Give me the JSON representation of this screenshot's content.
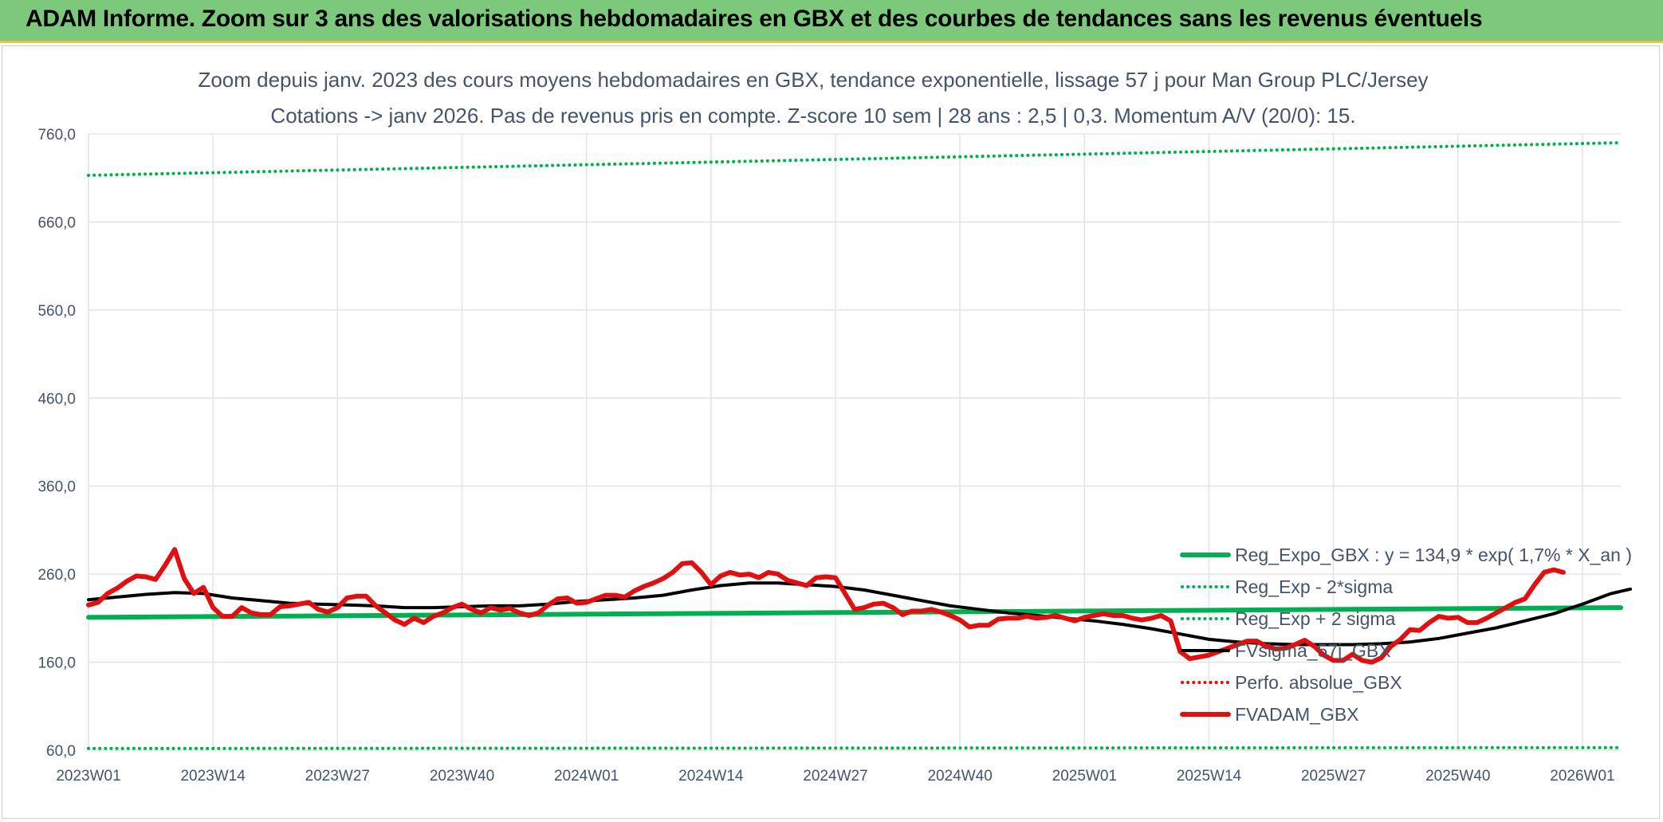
{
  "header": {
    "title": "ADAM Informe. Zoom sur 3 ans des valorisations hebdomadaires en GBX et des courbes de tendances sans les revenus éventuels"
  },
  "chart_data": {
    "type": "line",
    "title": "",
    "subtitle_lines": [
      "Zoom depuis janv. 2023 des cours moyens hebdomadaires en GBX, tendance exponentielle, lissage 57 j pour Man Group PLC/Jersey",
      "Cotations -> janv 2026. Pas de revenus pris en compte. Z-score 10 sem | 28 ans : 2,5 | 0,3. Momentum A/V (20/0): 15."
    ],
    "xlabel": "",
    "ylabel": "",
    "ylim": [
      60,
      760
    ],
    "yticks": [
      "760,0",
      "660,0",
      "560,0",
      "460,0",
      "360,0",
      "260,0",
      "160,0",
      "60,0"
    ],
    "yticks_values": [
      760,
      660,
      560,
      460,
      360,
      260,
      160,
      60
    ],
    "xticks": [
      "2023W01",
      "2023W14",
      "2023W27",
      "2023W40",
      "2024W01",
      "2024W14",
      "2024W27",
      "2024W40",
      "2025W01",
      "2025W14",
      "2025W27",
      "2025W40",
      "2026W01"
    ],
    "xticks_index": [
      0,
      13,
      26,
      39,
      52,
      65,
      78,
      91,
      104,
      117,
      130,
      143,
      156
    ],
    "x_index_range": [
      0,
      160
    ],
    "grid": true,
    "legend_position": "bottom-right",
    "colors": {
      "green": "#00b050",
      "black": "#000000",
      "red": "#e01010",
      "text": "#44546a",
      "grid": "#e3e3e3"
    },
    "series": [
      {
        "name": "Reg_Expo_GBX : y = 134,9 * exp( 1,7% *  X_an )",
        "style": "solid-thick",
        "color": "#00b050",
        "start": [
          0,
          211
        ],
        "end": [
          160,
          222
        ]
      },
      {
        "name": "Reg_Exp - 2*sigma",
        "style": "dotted",
        "color": "#00b050",
        "start": [
          0,
          62
        ],
        "end": [
          160,
          63
        ]
      },
      {
        "name": "Reg_Exp + 2 sigma",
        "style": "dotted",
        "color": "#00b050",
        "start": [
          0,
          713
        ],
        "end": [
          160,
          750
        ]
      },
      {
        "name": "FVsigma_57j_GBX",
        "style": "solid-medium",
        "color": "#000000",
        "points": [
          [
            0,
            231
          ],
          [
            3,
            234
          ],
          [
            6,
            237
          ],
          [
            9,
            239
          ],
          [
            12,
            238
          ],
          [
            15,
            233
          ],
          [
            18,
            230
          ],
          [
            21,
            227
          ],
          [
            24,
            226
          ],
          [
            27,
            225
          ],
          [
            30,
            224
          ],
          [
            33,
            222
          ],
          [
            36,
            222
          ],
          [
            39,
            223
          ],
          [
            42,
            224
          ],
          [
            45,
            224
          ],
          [
            48,
            226
          ],
          [
            51,
            229
          ],
          [
            54,
            231
          ],
          [
            57,
            233
          ],
          [
            60,
            236
          ],
          [
            63,
            242
          ],
          [
            66,
            247
          ],
          [
            69,
            250
          ],
          [
            72,
            250
          ],
          [
            75,
            248
          ],
          [
            78,
            246
          ],
          [
            81,
            242
          ],
          [
            84,
            236
          ],
          [
            87,
            230
          ],
          [
            90,
            224
          ],
          [
            93,
            220
          ],
          [
            96,
            216
          ],
          [
            99,
            213
          ],
          [
            102,
            210
          ],
          [
            105,
            207
          ],
          [
            108,
            203
          ],
          [
            111,
            198
          ],
          [
            114,
            192
          ],
          [
            117,
            186
          ],
          [
            120,
            183
          ],
          [
            123,
            181
          ],
          [
            126,
            180
          ],
          [
            129,
            180
          ],
          [
            132,
            180
          ],
          [
            135,
            181
          ],
          [
            138,
            183
          ],
          [
            141,
            187
          ],
          [
            144,
            193
          ],
          [
            147,
            199
          ],
          [
            150,
            207
          ],
          [
            153,
            215
          ],
          [
            156,
            226
          ],
          [
            159,
            238
          ],
          [
            161,
            243
          ]
        ]
      },
      {
        "name": "Perfo. absolue_GBX",
        "style": "dotted",
        "color": "#e01010",
        "points": []
      },
      {
        "name": "FVADAM_GBX",
        "style": "solid-thick",
        "color": "#e01010",
        "points": [
          [
            0,
            225
          ],
          [
            1,
            228
          ],
          [
            2,
            238
          ],
          [
            3,
            244
          ],
          [
            4,
            252
          ],
          [
            5,
            258
          ],
          [
            6,
            257
          ],
          [
            7,
            254
          ],
          [
            8,
            270
          ],
          [
            9,
            288
          ],
          [
            10,
            255
          ],
          [
            11,
            238
          ],
          [
            12,
            245
          ],
          [
            13,
            222
          ],
          [
            14,
            212
          ],
          [
            15,
            212
          ],
          [
            16,
            222
          ],
          [
            17,
            216
          ],
          [
            18,
            214
          ],
          [
            19,
            214
          ],
          [
            20,
            223
          ],
          [
            21,
            224
          ],
          [
            22,
            226
          ],
          [
            23,
            228
          ],
          [
            24,
            220
          ],
          [
            25,
            217
          ],
          [
            26,
            222
          ],
          [
            27,
            233
          ],
          [
            28,
            235
          ],
          [
            29,
            235
          ],
          [
            30,
            224
          ],
          [
            31,
            216
          ],
          [
            32,
            208
          ],
          [
            33,
            203
          ],
          [
            34,
            210
          ],
          [
            35,
            205
          ],
          [
            36,
            212
          ],
          [
            37,
            216
          ],
          [
            38,
            222
          ],
          [
            39,
            226
          ],
          [
            40,
            220
          ],
          [
            41,
            216
          ],
          [
            42,
            222
          ],
          [
            43,
            219
          ],
          [
            44,
            221
          ],
          [
            45,
            216
          ],
          [
            46,
            213
          ],
          [
            47,
            216
          ],
          [
            48,
            225
          ],
          [
            49,
            232
          ],
          [
            50,
            233
          ],
          [
            51,
            227
          ],
          [
            52,
            228
          ],
          [
            53,
            232
          ],
          [
            54,
            236
          ],
          [
            55,
            236
          ],
          [
            56,
            234
          ],
          [
            57,
            241
          ],
          [
            58,
            246
          ],
          [
            59,
            250
          ],
          [
            60,
            255
          ],
          [
            61,
            262
          ],
          [
            62,
            272
          ],
          [
            63,
            273
          ],
          [
            64,
            262
          ],
          [
            65,
            248
          ],
          [
            66,
            258
          ],
          [
            67,
            262
          ],
          [
            68,
            259
          ],
          [
            69,
            260
          ],
          [
            70,
            256
          ],
          [
            71,
            262
          ],
          [
            72,
            260
          ],
          [
            73,
            253
          ],
          [
            74,
            250
          ],
          [
            75,
            247
          ],
          [
            76,
            256
          ],
          [
            77,
            257
          ],
          [
            78,
            256
          ],
          [
            79,
            238
          ],
          [
            80,
            220
          ],
          [
            81,
            222
          ],
          [
            82,
            226
          ],
          [
            83,
            227
          ],
          [
            84,
            222
          ],
          [
            85,
            214
          ],
          [
            86,
            218
          ],
          [
            87,
            218
          ],
          [
            88,
            220
          ],
          [
            89,
            217
          ],
          [
            90,
            213
          ],
          [
            91,
            208
          ],
          [
            92,
            200
          ],
          [
            93,
            202
          ],
          [
            94,
            202
          ],
          [
            95,
            209
          ],
          [
            96,
            210
          ],
          [
            97,
            210
          ],
          [
            98,
            212
          ],
          [
            99,
            210
          ],
          [
            100,
            211
          ],
          [
            101,
            213
          ],
          [
            102,
            210
          ],
          [
            103,
            207
          ],
          [
            104,
            211
          ],
          [
            105,
            213
          ],
          [
            106,
            215
          ],
          [
            107,
            213
          ],
          [
            108,
            213
          ],
          [
            109,
            210
          ],
          [
            110,
            208
          ],
          [
            111,
            210
          ],
          [
            112,
            213
          ],
          [
            113,
            207
          ],
          [
            114,
            172
          ],
          [
            115,
            164
          ],
          [
            116,
            166
          ],
          [
            117,
            168
          ],
          [
            118,
            172
          ],
          [
            119,
            176
          ],
          [
            120,
            180
          ],
          [
            121,
            184
          ],
          [
            122,
            184
          ],
          [
            123,
            178
          ],
          [
            124,
            175
          ],
          [
            125,
            176
          ],
          [
            126,
            180
          ],
          [
            127,
            185
          ],
          [
            128,
            178
          ],
          [
            129,
            168
          ],
          [
            130,
            162
          ],
          [
            131,
            162
          ],
          [
            132,
            169
          ],
          [
            133,
            162
          ],
          [
            134,
            160
          ],
          [
            135,
            165
          ],
          [
            136,
            178
          ],
          [
            137,
            186
          ],
          [
            138,
            197
          ],
          [
            139,
            196
          ],
          [
            140,
            205
          ],
          [
            141,
            212
          ],
          [
            142,
            210
          ],
          [
            143,
            211
          ],
          [
            144,
            205
          ],
          [
            145,
            205
          ],
          [
            146,
            210
          ],
          [
            147,
            216
          ],
          [
            148,
            222
          ],
          [
            149,
            228
          ],
          [
            150,
            232
          ],
          [
            151,
            248
          ],
          [
            152,
            262
          ],
          [
            153,
            265
          ],
          [
            154,
            262
          ]
        ]
      }
    ]
  }
}
